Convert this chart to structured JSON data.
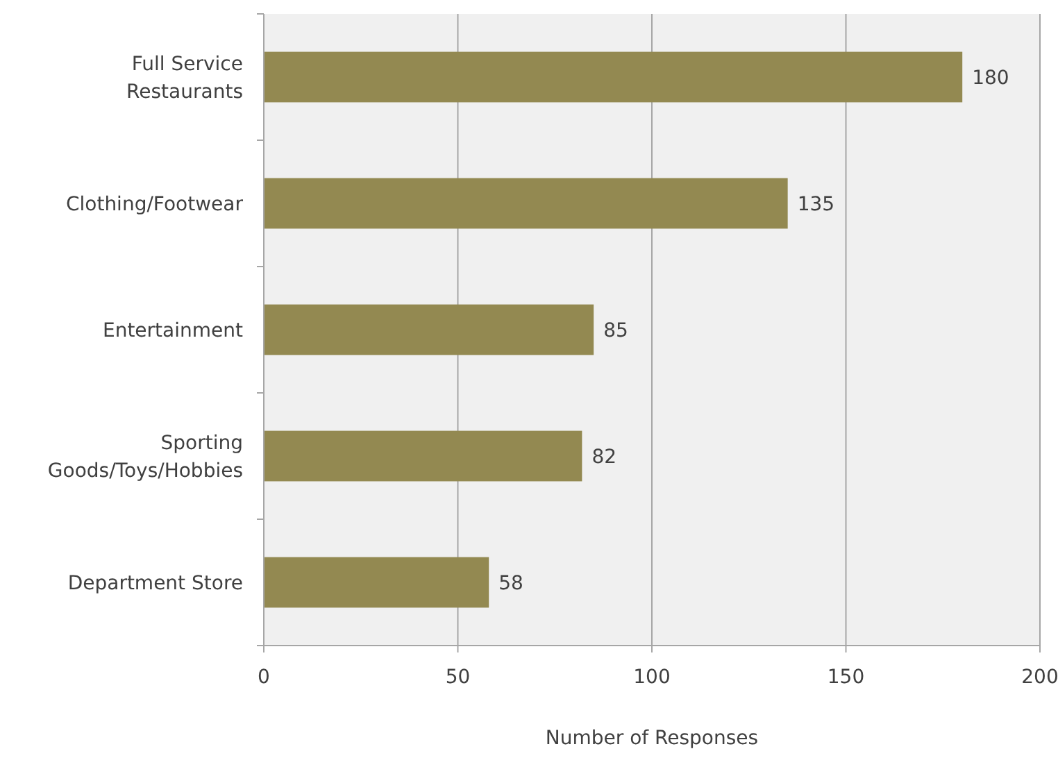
{
  "chart_data": {
    "type": "bar",
    "orientation": "horizontal",
    "xlabel": "Number of Responses",
    "categories": [
      "Full Service Restaurants",
      "Clothing/Footwear",
      "Entertainment",
      "Sporting Goods/Toys/Hobbies",
      "Department Store"
    ],
    "values": [
      180,
      135,
      85,
      82,
      58
    ],
    "color": "#938951",
    "xlim": [
      0,
      200
    ],
    "xticks": [
      0,
      50,
      100,
      150,
      200
    ],
    "grid": "x",
    "data_labels": true
  }
}
